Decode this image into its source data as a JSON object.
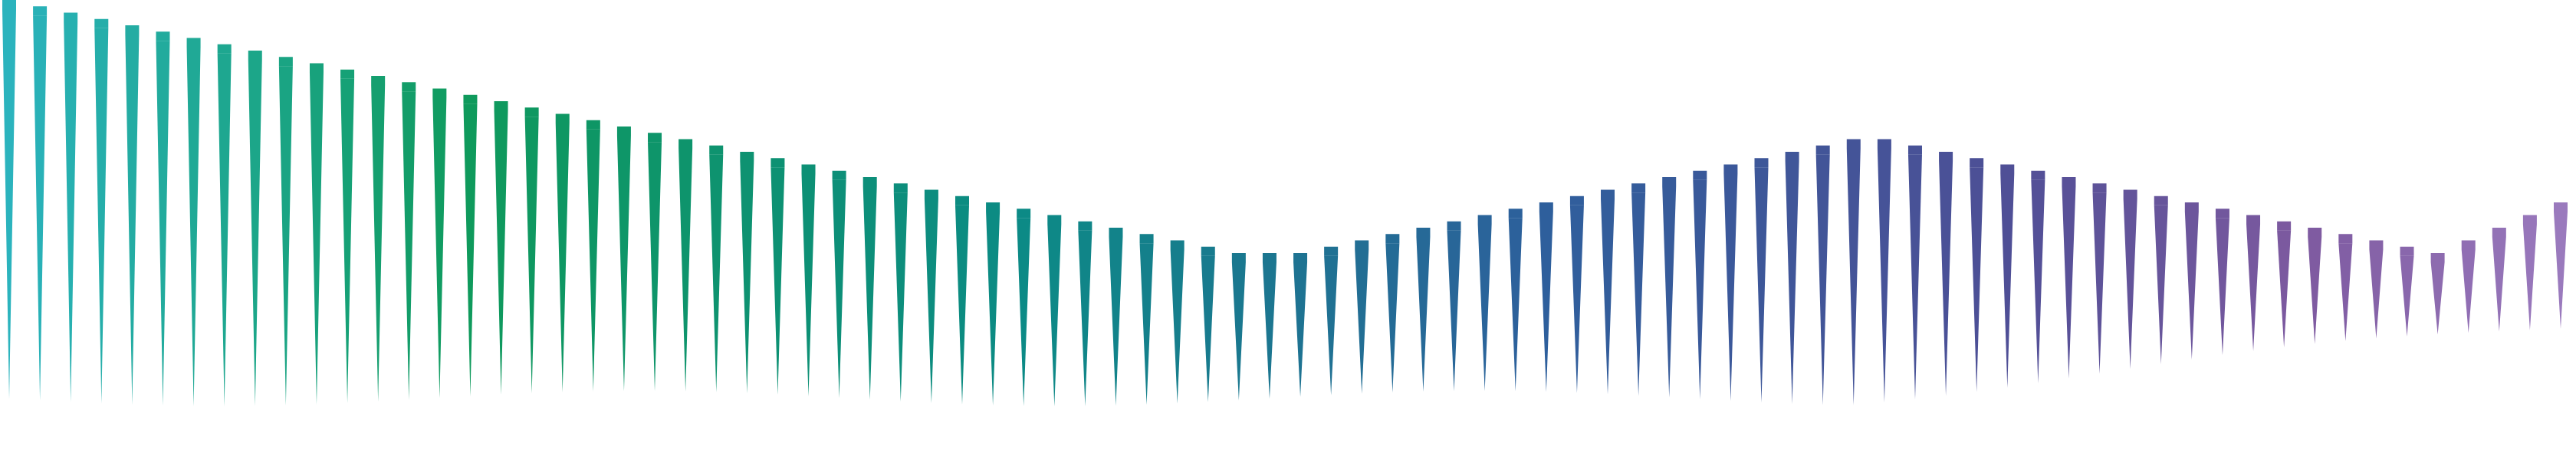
{
  "graphic": {
    "kind": "decorative-spike-waveform",
    "spike_count": 84,
    "palette": {
      "start": "#2bb3bd",
      "green": "#0f9a5c",
      "teal": "#0c8a86",
      "blue": "#2e5f9c",
      "indigo": "#4e4f96",
      "purple": "#7e5aa0",
      "end": "#9a7abd"
    },
    "levels": [
      1.0,
      0.99,
      0.98,
      0.97,
      0.96,
      0.95,
      0.94,
      0.93,
      0.92,
      0.91,
      0.9,
      0.89,
      0.88,
      0.87,
      0.86,
      0.85,
      0.84,
      0.83,
      0.82,
      0.81,
      0.8,
      0.79,
      0.78,
      0.77,
      0.76,
      0.75,
      0.74,
      0.73,
      0.72,
      0.71,
      0.7,
      0.69,
      0.68,
      0.67,
      0.66,
      0.65,
      0.64,
      0.63,
      0.62,
      0.61,
      0.6,
      0.6,
      0.6,
      0.61,
      0.62,
      0.63,
      0.64,
      0.65,
      0.66,
      0.67,
      0.68,
      0.69,
      0.7,
      0.71,
      0.72,
      0.73,
      0.74,
      0.75,
      0.76,
      0.77,
      0.78,
      0.78,
      0.77,
      0.76,
      0.75,
      0.74,
      0.73,
      0.72,
      0.71,
      0.7,
      0.69,
      0.68,
      0.67,
      0.66,
      0.65,
      0.64,
      0.63,
      0.62,
      0.61,
      0.6,
      0.62,
      0.64,
      0.66,
      0.68
    ]
  }
}
